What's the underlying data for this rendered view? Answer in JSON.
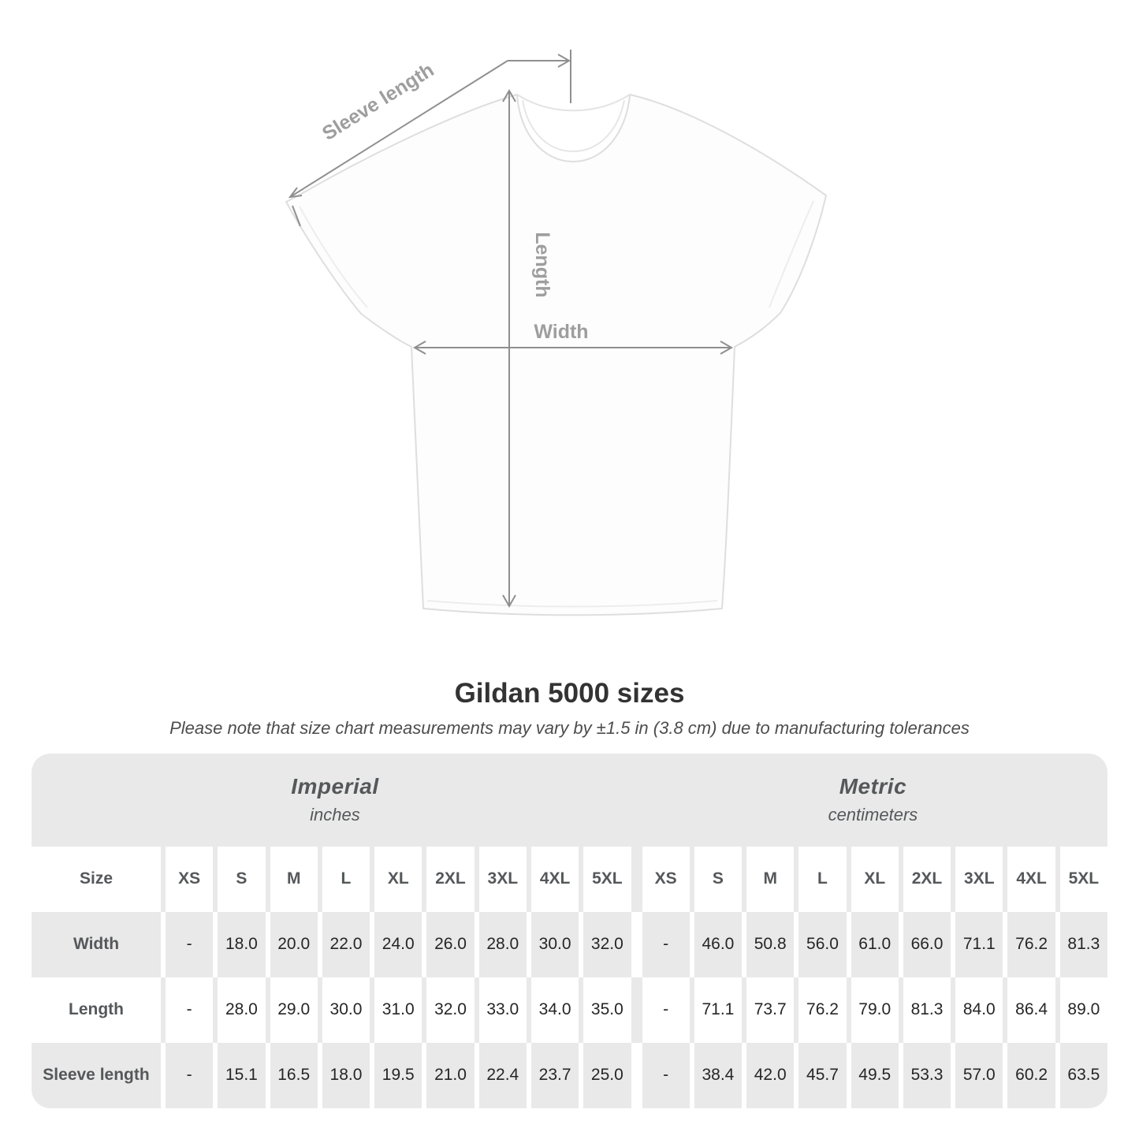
{
  "figure": {
    "sleeve_length_label": "Sleeve length",
    "length_label": "Length",
    "width_label": "Width"
  },
  "heading": {
    "title": "Gildan 5000 sizes",
    "subtitle": "Please note that size chart measurements may vary by ±1.5 in (3.8 cm) due to manufacturing tolerances"
  },
  "table": {
    "sections": [
      {
        "label": "Imperial",
        "unit": "inches"
      },
      {
        "label": "Metric",
        "unit": "centimeters"
      }
    ],
    "size_header": "Size",
    "sizes": [
      "XS",
      "S",
      "M",
      "L",
      "XL",
      "2XL",
      "3XL",
      "4XL",
      "5XL"
    ],
    "rows": [
      {
        "label": "Width",
        "imperial": [
          "-",
          "18.0",
          "20.0",
          "22.0",
          "24.0",
          "26.0",
          "28.0",
          "30.0",
          "32.0"
        ],
        "metric": [
          "-",
          "46.0",
          "50.8",
          "56.0",
          "61.0",
          "66.0",
          "71.1",
          "76.2",
          "81.3"
        ]
      },
      {
        "label": "Length",
        "imperial": [
          "-",
          "28.0",
          "29.0",
          "30.0",
          "31.0",
          "32.0",
          "33.0",
          "34.0",
          "35.0"
        ],
        "metric": [
          "-",
          "71.1",
          "73.7",
          "76.2",
          "79.0",
          "81.3",
          "84.0",
          "86.4",
          "89.0"
        ]
      },
      {
        "label": "Sleeve length",
        "imperial": [
          "-",
          "15.1",
          "16.5",
          "18.0",
          "19.5",
          "21.0",
          "22.4",
          "23.7",
          "25.0"
        ],
        "metric": [
          "-",
          "38.4",
          "42.0",
          "45.7",
          "49.5",
          "53.3",
          "57.0",
          "60.2",
          "63.5"
        ]
      }
    ]
  },
  "colors": {
    "table_band": "#e9e9e9",
    "heading_text": "#333333",
    "table_header_text": "#55585a",
    "value_text": "#262626",
    "arrow": "#8f8f8f",
    "figure_label": "#9e9e9e",
    "shirt_outline": "#dedede"
  }
}
